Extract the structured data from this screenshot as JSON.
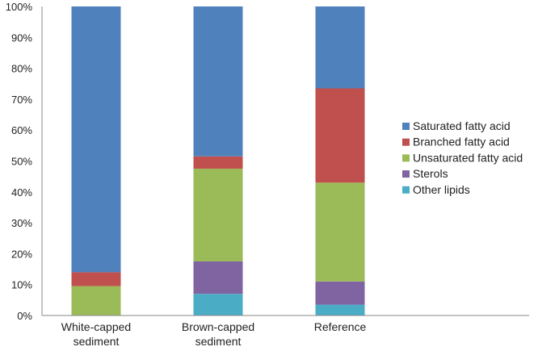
{
  "chart_data": {
    "type": "bar",
    "stacked": true,
    "percent": true,
    "categories": [
      [
        "White-capped",
        "sediment"
      ],
      [
        "Brown-capped",
        "sediment"
      ],
      [
        "Reference"
      ]
    ],
    "series": [
      {
        "name": "Other lipids",
        "color": "#4bacc6",
        "values": [
          0,
          7,
          3.5
        ]
      },
      {
        "name": "Sterols",
        "color": "#8064a2",
        "values": [
          0,
          10.5,
          7.5
        ]
      },
      {
        "name": "Unsaturated fatty acid",
        "color": "#9bbb59",
        "values": [
          9.5,
          30,
          32
        ]
      },
      {
        "name": "Branched fatty acid",
        "color": "#c0504d",
        "values": [
          4.5,
          4,
          30.5
        ]
      },
      {
        "name": "Saturated fatty acid",
        "color": "#4f81bd",
        "values": [
          86,
          48.5,
          26.5
        ]
      }
    ],
    "legend_order": [
      "Saturated fatty acid",
      "Branched fatty acid",
      "Unsaturated fatty acid",
      "Sterols",
      "Other lipids"
    ],
    "yticks": [
      "0%",
      "10%",
      "20%",
      "30%",
      "40%",
      "50%",
      "60%",
      "70%",
      "80%",
      "90%",
      "100%"
    ],
    "ylim": [
      0,
      100
    ],
    "grid": false,
    "legend_position": "right"
  }
}
